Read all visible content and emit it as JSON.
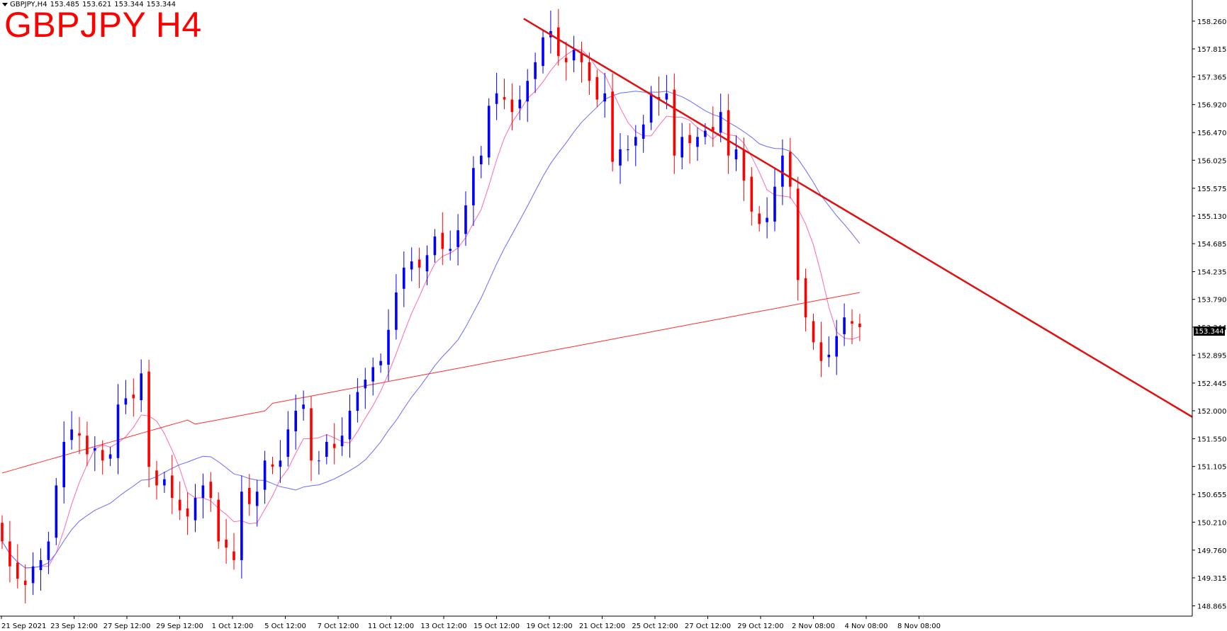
{
  "header": {
    "symbol": "GBPJPY,H4",
    "open": "153.485",
    "high": "153.621",
    "low": "153.344",
    "close": "153.344",
    "title_overlay": "GBPJPY H4"
  },
  "price_label": "153.344",
  "colors": {
    "bull_candle": "#0000ff",
    "bear_candle": "#ff0000",
    "ma_fast": "#ff69b4",
    "ma_mid": "#6a6aff",
    "ma_slow": "#ff3030",
    "trendline": "#e01010",
    "title": "#ff0000"
  },
  "icons": {
    "menu_arrow": "triangle-down-icon"
  },
  "chart_data": {
    "type": "candlestick",
    "y_ticks": [
      "158.260",
      "157.815",
      "157.365",
      "156.920",
      "156.470",
      "156.025",
      "155.575",
      "155.130",
      "154.685",
      "154.235",
      "153.790",
      "153.344",
      "152.895",
      "152.445",
      "152.000",
      "151.550",
      "151.105",
      "150.655",
      "150.210",
      "149.760",
      "149.315",
      "148.865"
    ],
    "x_ticks": [
      "21 Sep 2021",
      "23 Sep 12:00",
      "27 Sep 12:00",
      "29 Sep 12:00",
      "1 Oct 12:00",
      "5 Oct 12:00",
      "7 Oct 12:00",
      "11 Oct 12:00",
      "13 Oct 12:00",
      "15 Oct 12:00",
      "19 Oct 12:00",
      "21 Oct 12:00",
      "25 Oct 12:00",
      "27 Oct 12:00",
      "29 Oct 12:00",
      "2 Nov 08:00",
      "4 Nov 08:00",
      "8 Nov 08:00"
    ],
    "ylim": [
      148.7,
      158.6
    ],
    "closes": [
      149.9,
      149.5,
      149.3,
      149.2,
      149.5,
      149.6,
      149.9,
      150.8,
      151.5,
      151.7,
      151.6,
      151.3,
      151.4,
      151.2,
      151.3,
      152.1,
      152.2,
      152.2,
      152.6,
      151.1,
      150.8,
      150.9,
      150.6,
      150.4,
      150.3,
      150.6,
      150.8,
      150.6,
      149.9,
      149.8,
      149.6,
      150.7,
      150.5,
      150.7,
      151.2,
      151.1,
      151.2,
      151.7,
      152.0,
      152.1,
      151.2,
      151.2,
      151.5,
      151.4,
      151.6,
      152.0,
      152.3,
      152.5,
      152.7,
      152.8,
      153.3,
      153.9,
      154.3,
      154.4,
      154.3,
      154.5,
      154.8,
      154.6,
      154.6,
      154.9,
      155.3,
      155.9,
      156.1,
      156.9,
      157.1,
      157.0,
      156.8,
      157.0,
      157.3,
      157.6,
      158.0,
      158.1,
      157.7,
      157.6,
      157.8,
      157.6,
      157.3,
      157.0,
      157.1,
      156.0,
      156.2,
      156.2,
      156.4,
      156.6,
      157.1,
      157.0,
      157.1,
      156.1,
      156.4,
      156.3,
      156.4,
      156.5,
      156.5,
      156.8,
      156.1,
      156.2,
      155.7,
      155.2,
      155.0,
      155.1,
      155.6,
      156.1,
      155.6,
      154.1,
      153.5,
      153.1,
      152.8,
      152.9,
      153.2,
      153.5,
      153.4,
      153.344
    ],
    "trendline": {
      "from": {
        "bar": 62,
        "price": 158.3
      },
      "to": {
        "bar": 127,
        "price": 153.9
      }
    }
  }
}
